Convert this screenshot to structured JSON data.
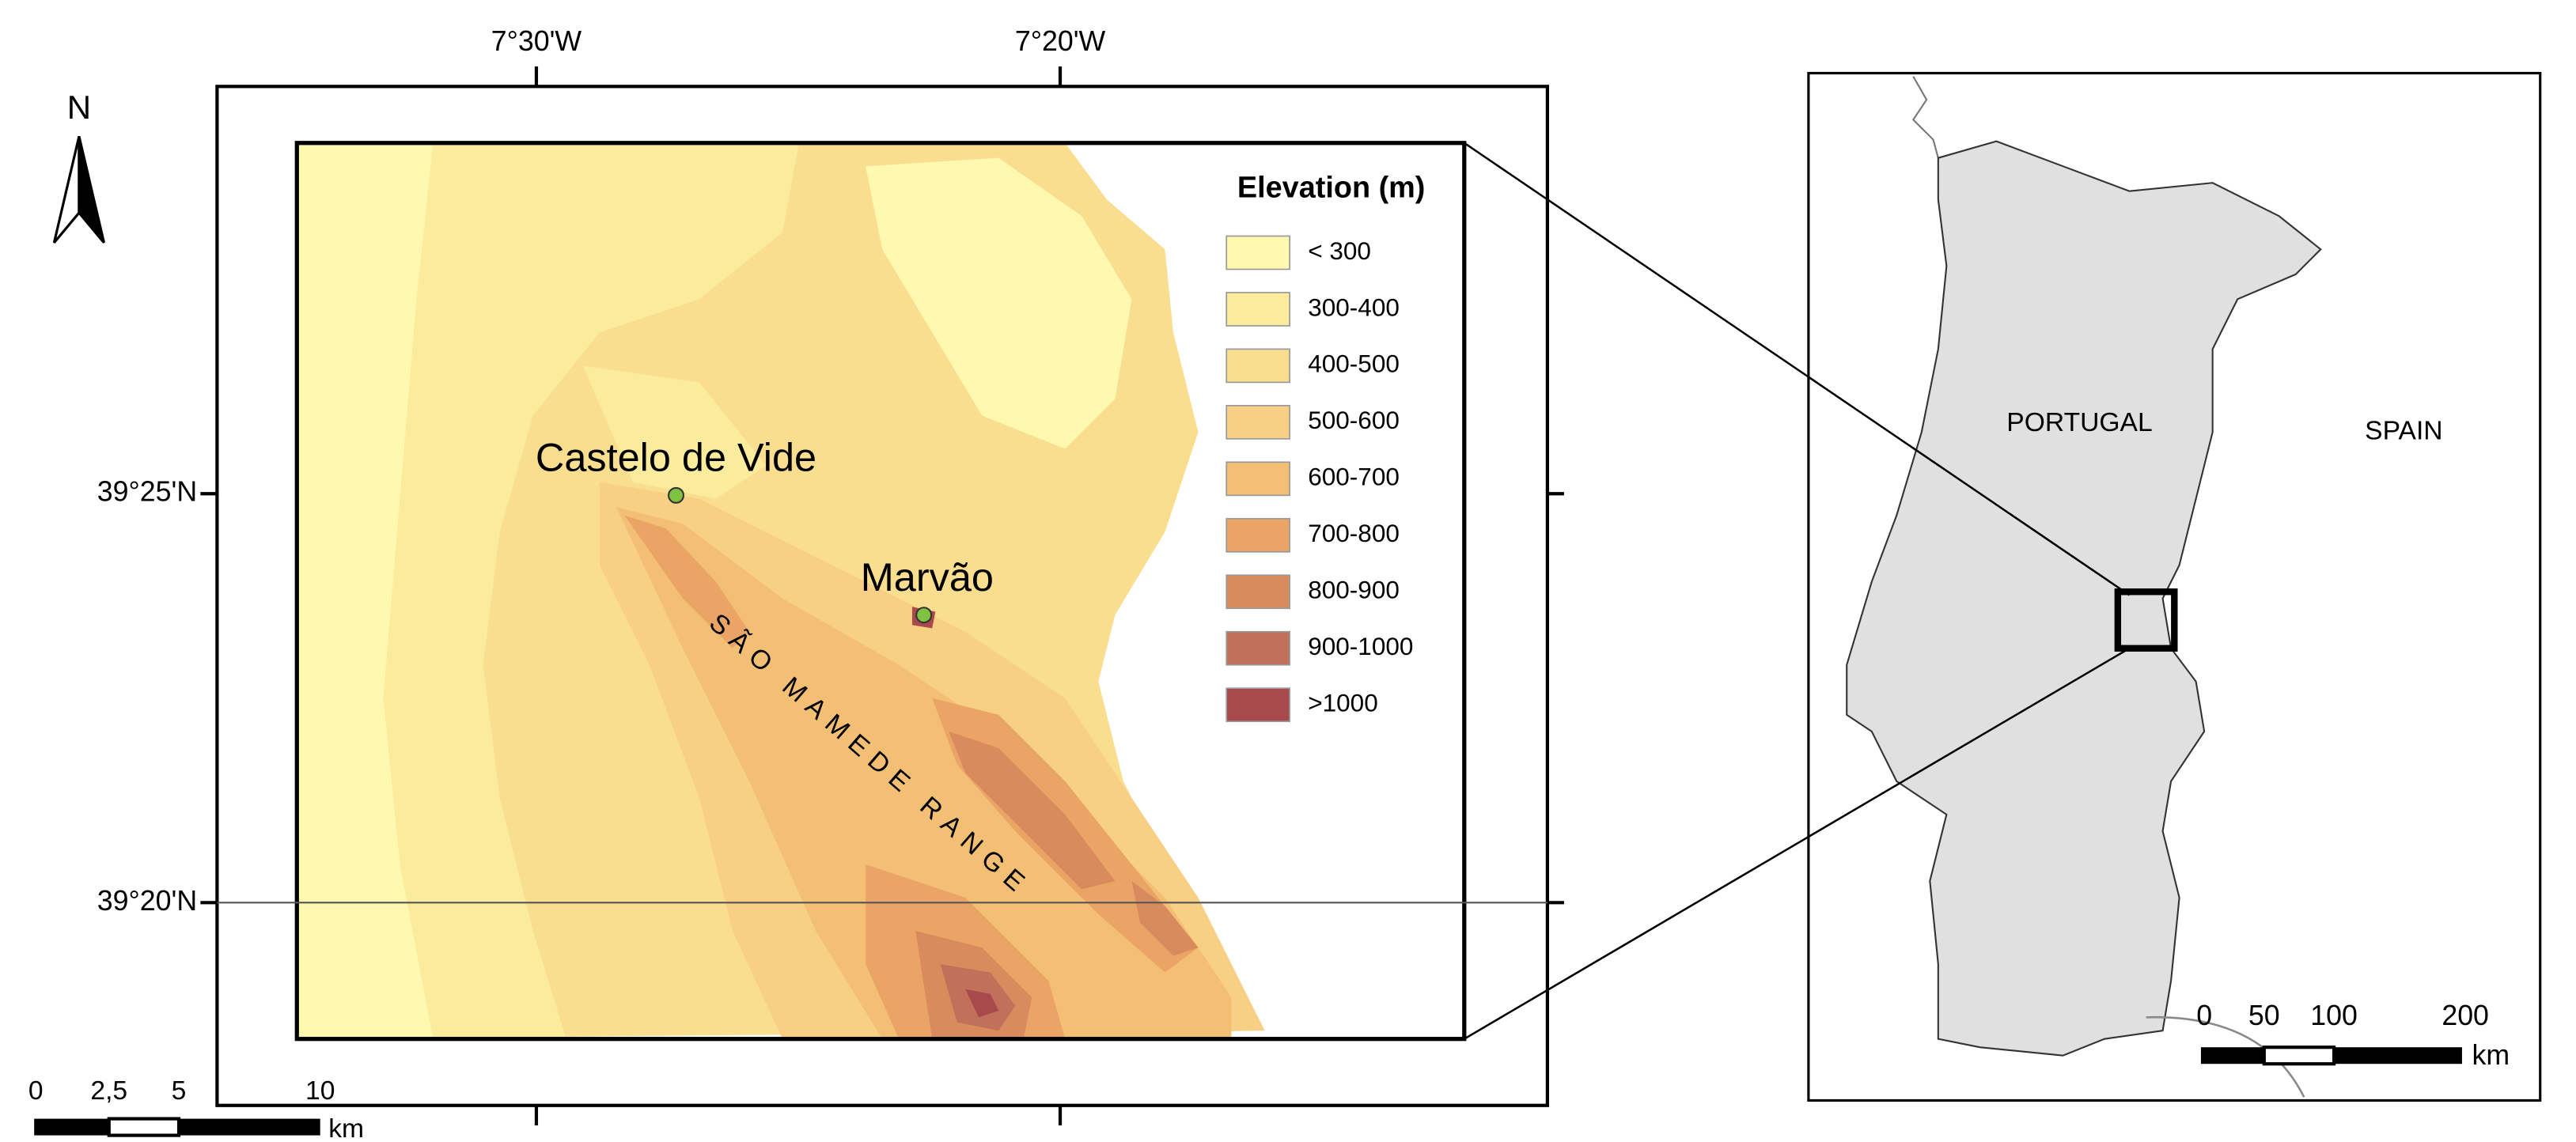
{
  "map": {
    "north": "N",
    "top_labels": [
      "7°30'W",
      "7°20'W"
    ],
    "left_labels": [
      "39°25'N",
      "39°20'N"
    ],
    "legend": {
      "title": "Elevation (m)",
      "items": [
        {
          "label": "< 300",
          "color": "#fff9b0"
        },
        {
          "label": "300-400",
          "color": "#fbeb9c"
        },
        {
          "label": "400-500",
          "color": "#f9de90"
        },
        {
          "label": "500-600",
          "color": "#f7d086"
        },
        {
          "label": "600-700",
          "color": "#f3bf74"
        },
        {
          "label": "700-800",
          "color": "#eaa566"
        },
        {
          "label": "800-900",
          "color": "#d98b5d"
        },
        {
          "label": "900-1000",
          "color": "#c2705a"
        },
        {
          "label": ">1000",
          "color": "#a84a4c"
        }
      ]
    },
    "places": [
      "Castelo de Vide",
      "Marvão"
    ],
    "range": "SÃO MAMEDE RANGE",
    "scale": {
      "labels": [
        "0",
        "2,5",
        "5",
        "10"
      ],
      "unit": "km"
    }
  },
  "inset": {
    "countries": [
      "PORTUGAL",
      "SPAIN"
    ],
    "scale": {
      "labels": [
        "0",
        "50",
        "100",
        "200"
      ],
      "unit": "km"
    }
  }
}
